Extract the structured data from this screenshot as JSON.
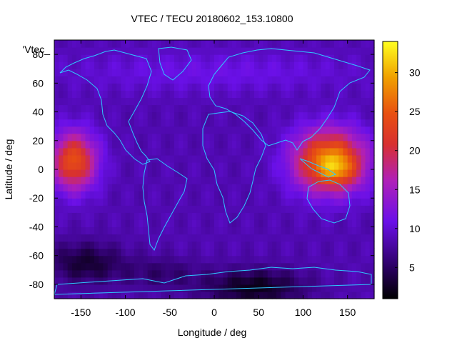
{
  "chart_data": {
    "type": "heatmap",
    "title": "VTEC / TECU 20180602_153.10800",
    "xlabel": "Longitude / deg",
    "ylabel": "Latitude / deg",
    "legend_key": "'Vtec_",
    "xlim": [
      -180,
      180
    ],
    "ylim": [
      -90,
      90
    ],
    "x_ticks": [
      -150,
      -100,
      -50,
      0,
      50,
      100,
      150
    ],
    "y_ticks": [
      -80,
      -60,
      -40,
      -20,
      0,
      20,
      40,
      60,
      80
    ],
    "colorbar": {
      "range": [
        1,
        34
      ],
      "ticks": [
        5,
        10,
        15,
        20,
        25,
        30
      ]
    },
    "grid": false,
    "overlay": "coastlines",
    "features": [
      {
        "name": "Pacific equatorial maximum",
        "lon": -155,
        "lat": 5,
        "vtec": 24
      },
      {
        "name": "SE Asia / W Pacific maximum",
        "lon": 130,
        "lat": 5,
        "vtec": 32
      },
      {
        "name": "Northern high-latitude band",
        "lon": 0,
        "lat": 65,
        "vtec": 10
      },
      {
        "name": "Southern depletion",
        "lon": 45,
        "lat": -82,
        "vtec": 2
      },
      {
        "name": "S. Pacific trough",
        "lon": -145,
        "lat": -65,
        "vtec": 3
      }
    ]
  }
}
